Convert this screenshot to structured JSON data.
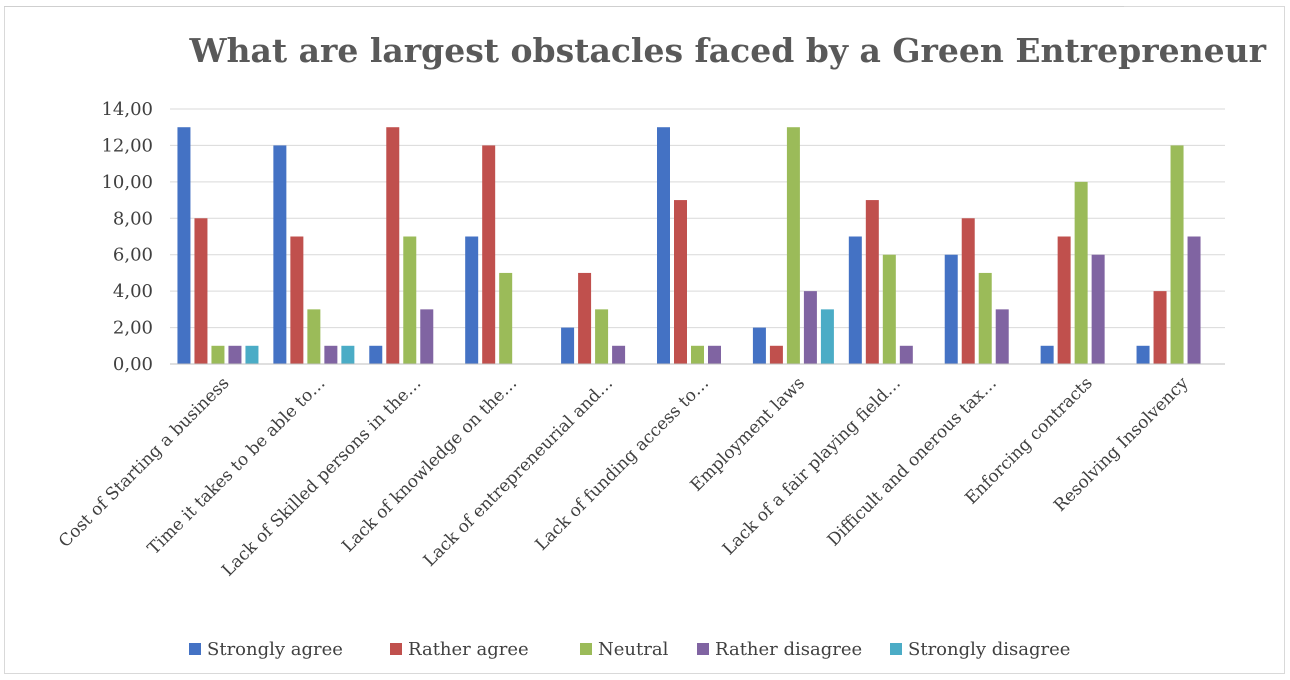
{
  "chart_data": {
    "type": "bar",
    "title": "What are largest obstacles faced by a Green Entrepreneur",
    "xlabel": "",
    "ylabel": "",
    "ylim": [
      0,
      14
    ],
    "y_ticks": [
      "0,00",
      "2,00",
      "4,00",
      "6,00",
      "8,00",
      "10,00",
      "12,00",
      "14,00"
    ],
    "grid": true,
    "legend_position": "bottom",
    "categories": [
      "Cost of Starting a business",
      "Time it takes to be able to…",
      "Lack of Skilled persons in the…",
      "Lack of knowledge on the…",
      "Lack of entrepreneurial and…",
      "Lack of funding access to…",
      "Employment laws",
      "Lack of a fair playing field…",
      "Difficult and onerous tax…",
      "Enforcing contracts",
      "Resolving Insolvency"
    ],
    "series": [
      {
        "name": "Strongly agree",
        "color": "#4472c4",
        "values": [
          13,
          12,
          1,
          7,
          2,
          13,
          2,
          7,
          6,
          1,
          1
        ]
      },
      {
        "name": "Rather agree",
        "color": "#c0504d",
        "values": [
          8,
          7,
          13,
          12,
          5,
          9,
          1,
          9,
          8,
          7,
          4
        ]
      },
      {
        "name": "Neutral",
        "color": "#9bbb59",
        "values": [
          1,
          3,
          7,
          5,
          3,
          1,
          13,
          6,
          5,
          10,
          12
        ]
      },
      {
        "name": "Rather disagree",
        "color": "#8064a2",
        "values": [
          1,
          1,
          3,
          0,
          1,
          1,
          4,
          1,
          3,
          6,
          7
        ]
      },
      {
        "name": "Strongly disagree",
        "color": "#4bacc6",
        "values": [
          1,
          1,
          0,
          0,
          0,
          0,
          3,
          0,
          0,
          0,
          0
        ]
      }
    ]
  }
}
